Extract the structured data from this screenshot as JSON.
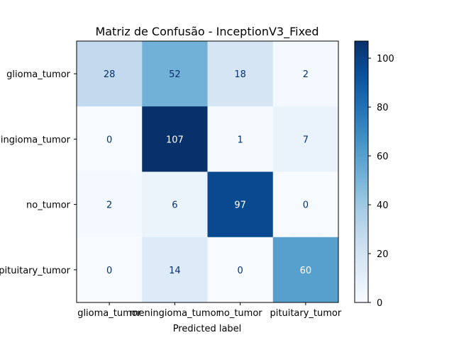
{
  "chart_data": {
    "type": "heatmap",
    "title": "Matriz de Confusão - InceptionV3_Fixed",
    "xlabel": "Predicted label",
    "ylabel": "",
    "row_labels": [
      "glioma_tumor",
      "meningioma_tumor",
      "no_tumor",
      "pituitary_tumor"
    ],
    "col_labels": [
      "glioma_tumor",
      "meningioma_tumor",
      "no_tumor",
      "pituitary_tumor"
    ],
    "matrix": [
      [
        28,
        52,
        18,
        2
      ],
      [
        0,
        107,
        1,
        7
      ],
      [
        2,
        6,
        97,
        0
      ],
      [
        0,
        14,
        0,
        60
      ]
    ],
    "colormap": "Blues",
    "vmin": 0,
    "vmax": 107,
    "colorbar_ticks": [
      0,
      20,
      40,
      60,
      80,
      100
    ]
  }
}
